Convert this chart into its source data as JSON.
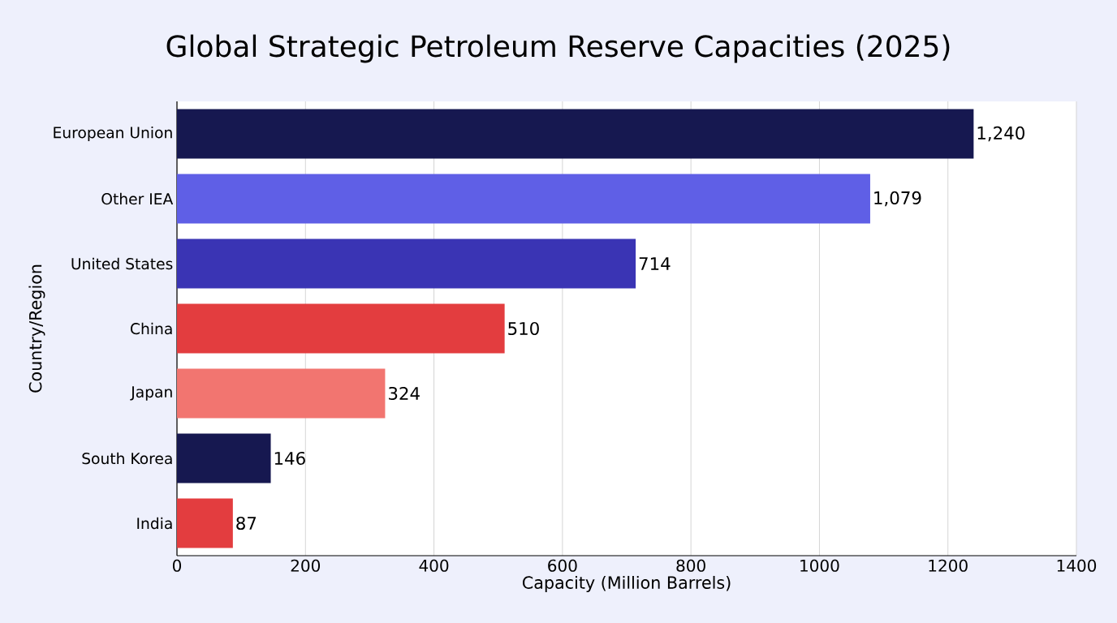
{
  "chart_data": {
    "type": "bar",
    "orientation": "horizontal",
    "title": "Global Strategic Petroleum Reserve Capacities (2025)",
    "xlabel": "Capacity (Million Barrels)",
    "ylabel": "Country/Region",
    "categories": [
      "European Union",
      "Other IEA",
      "United States",
      "China",
      "Japan",
      "South Korea",
      "India"
    ],
    "values": [
      1240,
      1079,
      714,
      510,
      324,
      146,
      87
    ],
    "value_labels": [
      "1,240",
      "1,079",
      "714",
      "510",
      "324",
      "146",
      "87"
    ],
    "colors": [
      "#161850",
      "#5f5fe6",
      "#3a34b4",
      "#e33d3f",
      "#f27570",
      "#161850",
      "#e33d3f"
    ],
    "xlim": [
      0,
      1400
    ],
    "xticks": [
      0,
      200,
      400,
      600,
      800,
      1000,
      1200,
      1400
    ],
    "grid": "x"
  }
}
